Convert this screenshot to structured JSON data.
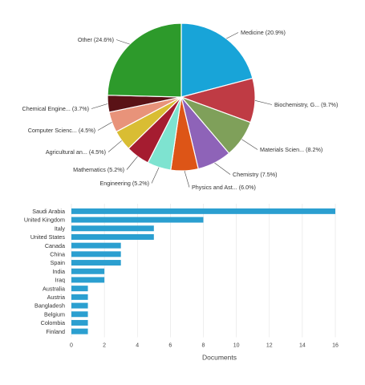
{
  "chart_data": [
    {
      "type": "pie",
      "slices": [
        {
          "label": "Medicine (20.9%)",
          "value": 20.9,
          "color": "#18a4d8"
        },
        {
          "label": "Biochemistry, G... (9.7%)",
          "value": 9.7,
          "color": "#bf3b44"
        },
        {
          "label": "Materials Scien... (8.2%)",
          "value": 8.2,
          "color": "#7fa05a"
        },
        {
          "label": "Chemistry (7.5%)",
          "value": 7.5,
          "color": "#8e63b8"
        },
        {
          "label": "Physics and Ast... (6.0%)",
          "value": 6.0,
          "color": "#dd5517"
        },
        {
          "label": "Engineering (5.2%)",
          "value": 5.2,
          "color": "#7ee3d0"
        },
        {
          "label": "Mathematics (5.2%)",
          "value": 5.2,
          "color": "#a51c30"
        },
        {
          "label": "Agricultural an... (4.5%)",
          "value": 4.5,
          "color": "#d9bd33"
        },
        {
          "label": "Computer Scienc... (4.5%)",
          "value": 4.5,
          "color": "#e8937a"
        },
        {
          "label": "Chemical Engine... (3.7%)",
          "value": 3.7,
          "color": "#5a1216"
        },
        {
          "label": "Other (24.6%)",
          "value": 24.6,
          "color": "#2d9a2b"
        }
      ]
    },
    {
      "type": "bar",
      "orientation": "horizontal",
      "categories": [
        "Saudi Arabia",
        "United Kingdom",
        "Italy",
        "United States",
        "Canada",
        "China",
        "Spain",
        "India",
        "Iraq",
        "Australia",
        "Austria",
        "Bangladesh",
        "Belgium",
        "Colombia",
        "Finland"
      ],
      "values": [
        16,
        8,
        5,
        5,
        3,
        3,
        3,
        2,
        2,
        1,
        1,
        1,
        1,
        1,
        1
      ],
      "xlabel": "Documents",
      "xlim": [
        0,
        16
      ],
      "xticks": [
        0,
        2,
        4,
        6,
        8,
        10,
        12,
        14,
        16
      ],
      "bar_color": "#2b9fd0",
      "grid": true
    }
  ]
}
